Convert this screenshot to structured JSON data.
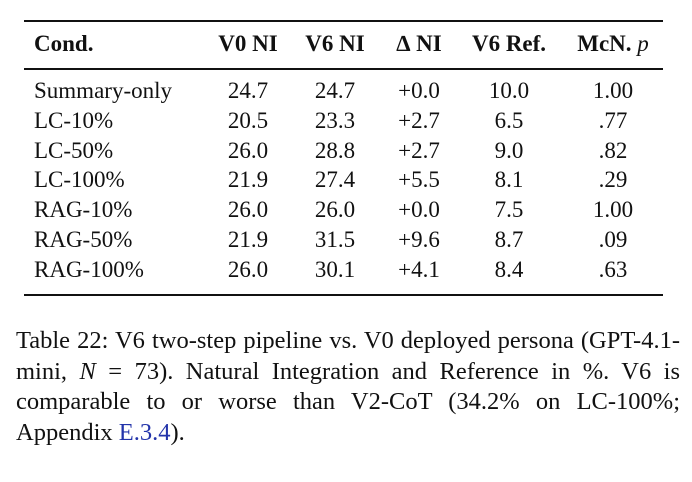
{
  "table": {
    "headers": [
      "Cond.",
      "V0 NI",
      "V6 NI",
      "∆ NI",
      "V6 Ref.",
      "McN."
    ],
    "header_p": "p",
    "rows": [
      [
        "Summary-only",
        "24.7",
        "24.7",
        "+0.0",
        "10.0",
        "1.00"
      ],
      [
        "LC-10%",
        "20.5",
        "23.3",
        "+2.7",
        "6.5",
        ".77"
      ],
      [
        "LC-50%",
        "26.0",
        "28.8",
        "+2.7",
        "9.0",
        ".82"
      ],
      [
        "LC-100%",
        "21.9",
        "27.4",
        "+5.5",
        "8.1",
        ".29"
      ],
      [
        "RAG-10%",
        "26.0",
        "26.0",
        "+0.0",
        "7.5",
        "1.00"
      ],
      [
        "RAG-50%",
        "21.9",
        "31.5",
        "+9.6",
        "8.7",
        ".09"
      ],
      [
        "RAG-100%",
        "26.0",
        "30.1",
        "+4.1",
        "8.4",
        ".63"
      ]
    ]
  },
  "caption": {
    "part1": "Table 22: V6 two-step pipeline vs. V0 deployed persona (GPT-4.1-mini, ",
    "n_var": "N",
    "part2": " = 73). Natural Integration and Reference in %. V6 is comparable to or worse than V2-CoT (34.2% on LC-100%; Appendix ",
    "link": "E.3.4",
    "part3": ")."
  }
}
